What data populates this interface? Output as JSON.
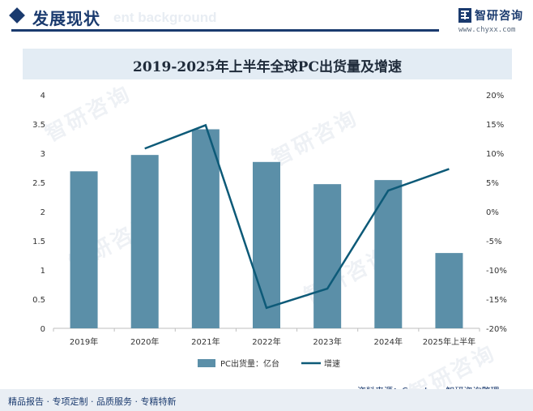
{
  "header": {
    "section_title": "发展现状",
    "ghost_text": "ent background"
  },
  "logo": {
    "name": "智研咨询",
    "url": "www.chyxx.com"
  },
  "watermark": "智研咨询",
  "footer": {
    "tagline": "精品报告 · 专项定制 · 品质服务 · 专精特新"
  },
  "source": "资料来源：Canalys、智研咨询整理",
  "colors": {
    "bar": "#5b8fa8",
    "line": "#0d5a78",
    "brand": "#1a3a6e"
  },
  "chart_data": {
    "type": "bar",
    "title": "2019-2025年上半年全球PC出货量及增速",
    "categories": [
      "2019年",
      "2020年",
      "2021年",
      "2022年",
      "2023年",
      "2024年",
      "2025年上半年"
    ],
    "series": [
      {
        "name": "PC出货量：亿台",
        "type": "bar",
        "axis": "left",
        "values": [
          2.69,
          2.97,
          3.41,
          2.85,
          2.47,
          2.54,
          1.29
        ]
      },
      {
        "name": "增速",
        "type": "line",
        "axis": "right",
        "values": [
          null,
          10.8,
          14.8,
          -16.5,
          -13.2,
          3.6,
          7.3
        ]
      }
    ],
    "y_left": {
      "min": 0,
      "max": 4,
      "ticks": [
        "0",
        "0.5",
        "1",
        "1.5",
        "2",
        "2.5",
        "3",
        "3.5",
        "4"
      ]
    },
    "y_right": {
      "min": -20,
      "max": 20,
      "ticks": [
        "-20%",
        "-15%",
        "-10%",
        "-5%",
        "0%",
        "5%",
        "10%",
        "15%",
        "20%"
      ]
    },
    "legend_position": "bottom",
    "grid": false
  }
}
